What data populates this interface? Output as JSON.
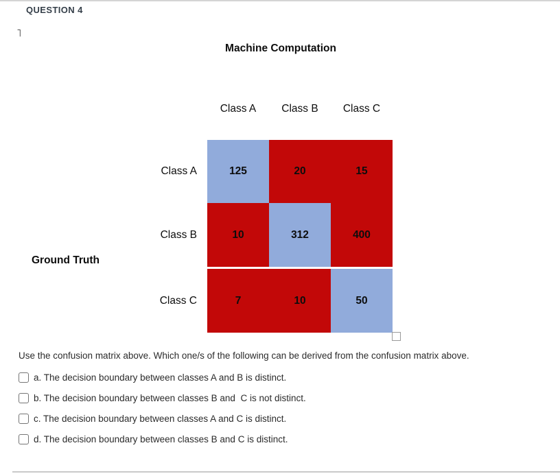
{
  "header": {
    "title": "QUESTION 4"
  },
  "figure": {
    "title": "Machine Computation",
    "row_axis_label": "Ground Truth",
    "col_labels": [
      "Class A",
      "Class B",
      "Class C"
    ],
    "row_labels": [
      "Class A",
      "Class B",
      "Class C"
    ],
    "matrix": [
      [
        125,
        20,
        15
      ],
      [
        10,
        312,
        400
      ],
      [
        7,
        10,
        50
      ]
    ],
    "colors": {
      "diagonal": "#91ABDB",
      "off_diagonal": "#C20808"
    }
  },
  "question": {
    "prompt": "Use the confusion matrix above. Which one/s of the following can be derived from the confusion matrix above.",
    "options": [
      {
        "label": "a. The decision boundary between classes A and B is distinct.",
        "checked": false
      },
      {
        "label": "b. The decision boundary between classes B and  C is not distinct.",
        "checked": false
      },
      {
        "label": "c. The decision boundary between classes A and C is distinct.",
        "checked": false
      },
      {
        "label": "d. The decision boundary between classes B and C is distinct.",
        "checked": false
      }
    ]
  }
}
